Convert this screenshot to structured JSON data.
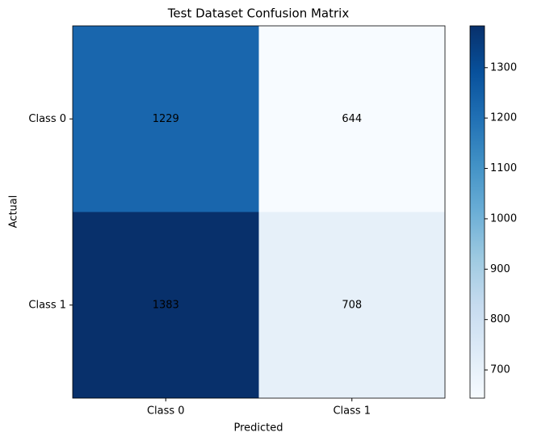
{
  "chart_data": {
    "type": "heatmap",
    "title": "Test Dataset Confusion Matrix",
    "xlabel": "Predicted",
    "ylabel": "Actual",
    "x_categories": [
      "Class 0",
      "Class 1"
    ],
    "y_categories": [
      "Class 0",
      "Class 1"
    ],
    "values": [
      [
        1229,
        644
      ],
      [
        1383,
        708
      ]
    ],
    "cmap": "Blues",
    "zlim": [
      644,
      1383
    ],
    "colorbar_ticks": [
      700,
      800,
      900,
      1000,
      1100,
      1200,
      1300
    ]
  }
}
